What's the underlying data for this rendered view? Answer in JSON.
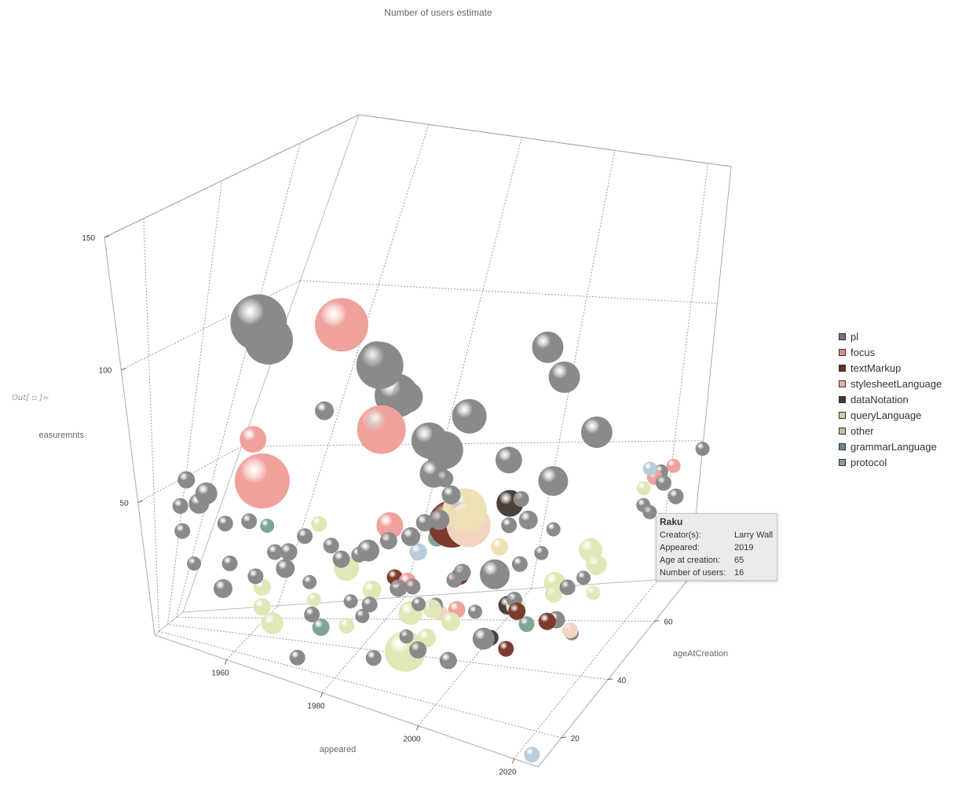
{
  "out_label": "Out[ ▫ ]=",
  "chart_data": {
    "type": "bubble3d",
    "title": "Number of users estimate",
    "xlabel": "appeared",
    "ylabel": "ageAtCreation",
    "zlabel": "easuremnts",
    "xlim": [
      1945,
      2025
    ],
    "ylim": [
      10,
      75
    ],
    "zlim": [
      0,
      150
    ],
    "x_ticks": [
      "1960",
      "1980",
      "2000",
      "2020"
    ],
    "y_ticks": [
      "20",
      "40",
      "60"
    ],
    "z_ticks": [
      "50",
      "100",
      "150"
    ],
    "legend_position": "right",
    "legend": [
      {
        "name": "pl",
        "color": "#757575"
      },
      {
        "name": "focus",
        "color": "#e48b84"
      },
      {
        "name": "textMarkup",
        "color": "#6e2f26"
      },
      {
        "name": "stylesheetLanguage",
        "color": "#e3b199"
      },
      {
        "name": "dataNotation",
        "color": "#3e3630"
      },
      {
        "name": "queryLanguage",
        "color": "#d6c99a"
      },
      {
        "name": "other",
        "color": "#b9c694"
      },
      {
        "name": "grammarLanguage",
        "color": "#5f8c78"
      },
      {
        "name": "protocol",
        "color": "#8b9aa6"
      }
    ],
    "colors": {
      "pl": "#8a8a8a",
      "focus": "#f0a19c",
      "textMarkup": "#7d3a2f",
      "stylesheetLanguage": "#f3d4c0",
      "dataNotation": "#4b413a",
      "queryLanguage": "#ede0b4",
      "other": "#dfe8b6",
      "grammarLanguage": "#7fa593",
      "protocol": "#b8ccdb"
    },
    "series": [
      {
        "name": "pl",
        "points": [
          [
            1965,
            20,
            122,
            36
          ],
          [
            1957,
            40,
            100,
            31
          ],
          [
            1983,
            28,
            109,
            30
          ],
          [
            1975,
            45,
            96,
            23
          ],
          [
            1981,
            41,
            88,
            28
          ],
          [
            1980,
            38,
            80,
            22
          ],
          [
            1981,
            46,
            84,
            20
          ],
          [
            1995,
            40,
            86,
            22
          ],
          [
            1989,
            38,
            77,
            23
          ],
          [
            2000,
            60,
            95,
            20
          ],
          [
            2008,
            49,
            96,
            20
          ],
          [
            1987,
            52,
            63,
            24
          ],
          [
            1965,
            50,
            73,
            12
          ],
          [
            1955,
            20,
            55,
            14
          ],
          [
            1952,
            25,
            48,
            13
          ],
          [
            1995,
            31,
            71,
            11
          ],
          [
            2003,
            40,
            73,
            17
          ],
          [
            2010,
            44,
            64,
            19
          ],
          [
            1988,
            45,
            60,
            18
          ],
          [
            1995,
            35,
            62,
            12
          ],
          [
            1995,
            30,
            57,
            13
          ],
          [
            1948,
            30,
            53,
            11
          ],
          [
            1950,
            20,
            48,
            10
          ],
          [
            1952,
            14,
            42,
            10
          ],
          [
            1957,
            25,
            43,
            10
          ],
          [
            1960,
            30,
            43,
            10
          ],
          [
            1955,
            10,
            33,
            9
          ],
          [
            1961,
            14,
            35,
            10
          ],
          [
            1966,
            14,
            33,
            10
          ],
          [
            1968,
            20,
            40,
            10
          ],
          [
            1972,
            25,
            45,
            10
          ],
          [
            1970,
            22,
            40,
            11
          ],
          [
            1978,
            22,
            46,
            10
          ],
          [
            1980,
            22,
            42,
            11
          ],
          [
            1982,
            26,
            42,
            10
          ],
          [
            1984,
            25,
            45,
            14
          ],
          [
            1986,
            30,
            46,
            11
          ],
          [
            1990,
            30,
            49,
            12
          ],
          [
            1992,
            31,
            54,
            11
          ],
          [
            2005,
            38,
            52,
            10
          ],
          [
            2007,
            42,
            51,
            12
          ],
          [
            1998,
            40,
            46,
            9
          ],
          [
            1986,
            21,
            29,
            10
          ],
          [
            1990,
            25,
            34,
            11
          ],
          [
            1992,
            27,
            34,
            10
          ],
          [
            1994,
            25,
            30,
            9
          ],
          [
            1998,
            32,
            35,
            10
          ],
          [
            2003,
            39,
            33,
            19
          ],
          [
            2003,
            30,
            27,
            9
          ],
          [
            2007,
            40,
            37,
            10
          ],
          [
            2010,
            42,
            40,
            9
          ],
          [
            2008,
            36,
            28,
            10
          ],
          [
            1995,
            32,
            25,
            9
          ],
          [
            2005,
            30,
            18,
            14
          ],
          [
            2003,
            17,
            20,
            11
          ],
          [
            2013,
            45,
            14,
            11
          ],
          [
            2018,
            39,
            16,
            9
          ],
          [
            2015,
            43,
            28,
            10
          ],
          [
            2017,
            45,
            30,
            9
          ],
          [
            2022,
            66,
            44,
            10
          ],
          [
            2021,
            60,
            42,
            9
          ],
          [
            2024,
            55,
            45,
            9
          ],
          [
            2020,
            70,
            44,
            9
          ],
          [
            2023,
            70,
            35,
            10
          ],
          [
            2025,
            75,
            47,
            9
          ],
          [
            1975,
            10,
            10,
            10
          ],
          [
            1962,
            5,
            30,
            12
          ],
          [
            1970,
            20,
            35,
            12
          ],
          [
            1975,
            19,
            33,
            9
          ],
          [
            1977,
            14,
            25,
            10
          ],
          [
            1983,
            19,
            30,
            9
          ],
          [
            1985,
            20,
            25,
            9
          ],
          [
            2006,
            40,
            60,
            10
          ],
          [
            1989,
            15,
            15,
            10
          ],
          [
            1993,
            22,
            20,
            9
          ],
          [
            1996,
            20,
            18,
            11
          ],
          [
            2000,
            30,
            40,
            11
          ],
          [
            2010,
            47,
            44,
            9
          ],
          [
            2014,
            52,
            75,
            20
          ]
        ]
      },
      {
        "name": "focus",
        "points": [
          [
            1982,
            33,
            82,
            31
          ],
          [
            1969,
            42,
            108,
            34
          ],
          [
            1957,
            38,
            67,
            17
          ],
          [
            1985,
            33,
            49,
            17
          ],
          [
            1962,
            30,
            58,
            35
          ],
          [
            2019,
            70,
            42,
            10
          ],
          [
            2021,
            73,
            43,
            9
          ],
          [
            1998,
            35,
            22,
            11
          ],
          [
            1990,
            30,
            33,
            11
          ]
        ]
      },
      {
        "name": "textMarkup",
        "points": [
          [
            1993,
            43,
            45,
            30
          ],
          [
            2013,
            40,
            18,
            11
          ],
          [
            2009,
            35,
            25,
            11
          ],
          [
            1998,
            35,
            34,
            11
          ],
          [
            2008,
            34,
            12,
            10
          ],
          [
            1987,
            32,
            32,
            10
          ]
        ]
      },
      {
        "name": "stylesheetLanguage",
        "points": [
          [
            1997,
            40,
            48,
            28
          ],
          [
            2018,
            38,
            18,
            10
          ],
          [
            1995,
            35,
            20,
            10
          ]
        ]
      },
      {
        "name": "dataNotation",
        "points": [
          [
            1995,
            43,
            52,
            21
          ],
          [
            2003,
            43,
            55,
            17
          ],
          [
            2005,
            42,
            20,
            12
          ],
          [
            2005,
            34,
            15,
            10
          ]
        ]
      },
      {
        "name": "queryLanguage",
        "points": [
          [
            1996,
            40,
            53,
            28
          ],
          [
            2003,
            40,
            42,
            11
          ]
        ]
      },
      {
        "name": "other",
        "points": [
          [
            1972,
            33,
            45,
            10
          ],
          [
            1965,
            22,
            25,
            11
          ],
          [
            1966,
            18,
            20,
            11
          ],
          [
            1968,
            18,
            15,
            14
          ],
          [
            1975,
            22,
            25,
            9
          ],
          [
            1978,
            32,
            32,
            16
          ],
          [
            1983,
            32,
            26,
            12
          ],
          [
            1991,
            30,
            22,
            15
          ],
          [
            1995,
            30,
            25,
            12
          ],
          [
            1992,
            25,
            12,
            26
          ],
          [
            1995,
            28,
            16,
            12
          ],
          [
            1998,
            32,
            20,
            12
          ],
          [
            2007,
            40,
            22,
            12
          ],
          [
            2012,
            45,
            27,
            14
          ],
          [
            2012,
            45,
            23,
            11
          ],
          [
            1982,
            20,
            20,
            10
          ],
          [
            2016,
            50,
            35,
            15
          ],
          [
            2018,
            48,
            32,
            13
          ],
          [
            2019,
            45,
            25,
            9
          ],
          [
            2019,
            65,
            43,
            9
          ]
        ]
      },
      {
        "name": "grammarLanguage",
        "points": [
          [
            1962,
            35,
            40,
            9
          ],
          [
            1990,
            45,
            38,
            11
          ],
          [
            1975,
            28,
            12,
            11
          ],
          [
            2010,
            38,
            18,
            10
          ]
        ]
      },
      {
        "name": "protocol",
        "points": [
          [
            1990,
            35,
            40,
            11
          ],
          [
            2018,
            70,
            45,
            9
          ],
          [
            2016,
            30,
            -20,
            10
          ]
        ]
      }
    ]
  },
  "tooltip": {
    "title": "Raku",
    "rows": [
      {
        "key": "Creator(s):",
        "value": "Larry Wall"
      },
      {
        "key": "Appeared:",
        "value": "2019"
      },
      {
        "key": "Age at creation:",
        "value": "65"
      },
      {
        "key": "Number of users:",
        "value": "16"
      }
    ]
  }
}
